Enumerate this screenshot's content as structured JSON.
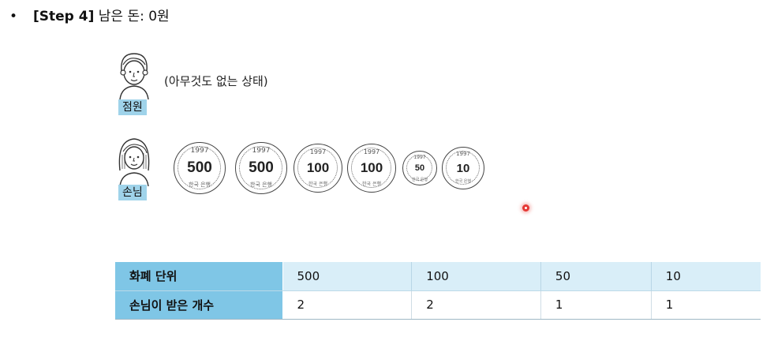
{
  "step": {
    "bullet": "•",
    "tag": "[Step 4]",
    "text": "남은 돈: 0원"
  },
  "clerk": {
    "label": "점원",
    "status": "(아무것도 없는 상태)"
  },
  "customer": {
    "label": "손님",
    "coins": [
      {
        "value": "500",
        "year": "1997",
        "bank": "한국 은행"
      },
      {
        "value": "500",
        "year": "1997",
        "bank": "한국 은행"
      },
      {
        "value": "100",
        "year": "1997",
        "bank": "한국 은행"
      },
      {
        "value": "100",
        "year": "1997",
        "bank": "한국 은행"
      },
      {
        "value": "50",
        "year": "1997",
        "bank": "한국 은행"
      },
      {
        "value": "10",
        "year": "1997",
        "bank": "한국 은행"
      }
    ]
  },
  "table": {
    "header_label": "화폐 단위",
    "row_label": "손님이 받은 개수",
    "units": [
      "500",
      "100",
      "50",
      "10"
    ],
    "counts": [
      "2",
      "2",
      "1",
      "1"
    ]
  },
  "colors": {
    "label_bg": "#9fd3ea",
    "table_head": "#7fc6e6",
    "table_light": "#d9eef8",
    "cursor": "#e53935"
  }
}
